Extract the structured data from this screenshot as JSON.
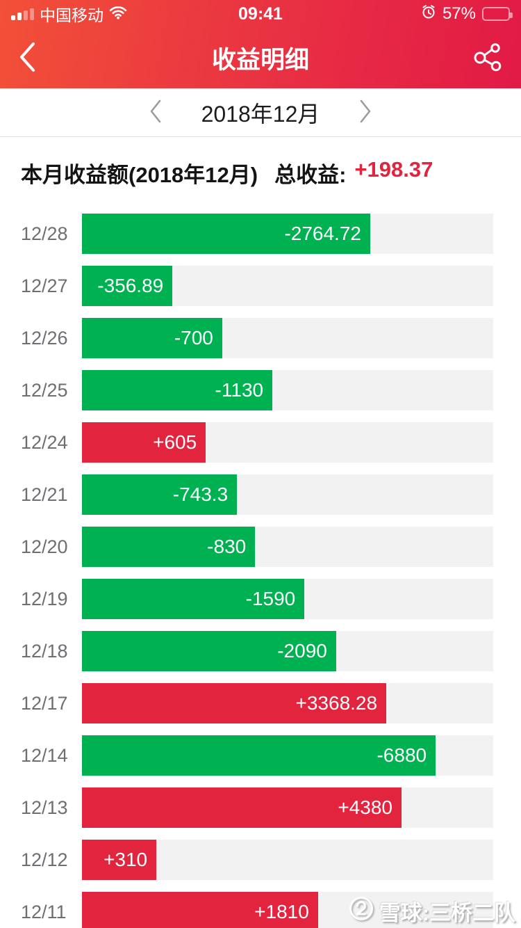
{
  "status_bar": {
    "carrier": "中国移动",
    "time": "09:41",
    "battery_text": "57%",
    "battery_level": 57,
    "icons": [
      "cellular-signal-icon",
      "wifi-icon",
      "alarm-clock-icon",
      "battery-icon"
    ]
  },
  "nav": {
    "title": "收益明细",
    "icons": [
      "back-chevron-icon",
      "share-icon"
    ]
  },
  "month_selector": {
    "label": "2018年12月",
    "icons": [
      "chevron-left-icon",
      "chevron-right-icon"
    ]
  },
  "summary": {
    "month_label": "本月收益额(2018年12月)",
    "total_label": "总收益:",
    "total_value": "+198.37"
  },
  "watermark": {
    "text": "雪球:三桥二队",
    "icon": "xueqiu-logo-icon"
  },
  "colors": {
    "gain_red": "#e2243f",
    "loss_green": "#00b151",
    "header_gradient_start": "#f25038",
    "header_gradient_end": "#e21a45",
    "bar_track": "#f2f2f3"
  },
  "chart_data": {
    "type": "bar",
    "orientation": "horizontal",
    "title": "本月收益额(2018年12月)",
    "value_labels_inside_bars": true,
    "legend": false,
    "color_semantics": {
      "positive": "red",
      "negative": "green"
    },
    "track_full_scale_hint": "bar lengths not linear; measured fractions stored as bar_pct",
    "rows": [
      {
        "date": "12/28",
        "value": -2764.72,
        "label": "-2764.72",
        "bar_pct": 70.1
      },
      {
        "date": "12/27",
        "value": -356.89,
        "label": "-356.89",
        "bar_pct": 22.0
      },
      {
        "date": "12/26",
        "value": -700,
        "label": "-700",
        "bar_pct": 34.1
      },
      {
        "date": "12/25",
        "value": -1130,
        "label": "-1130",
        "bar_pct": 46.3
      },
      {
        "date": "12/24",
        "value": 605,
        "label": "+605",
        "bar_pct": 30.1
      },
      {
        "date": "12/21",
        "value": -743.3,
        "label": "-743.3",
        "bar_pct": 37.7
      },
      {
        "date": "12/20",
        "value": -830,
        "label": "-830",
        "bar_pct": 42.1
      },
      {
        "date": "12/19",
        "value": -1590,
        "label": "-1590",
        "bar_pct": 54.1
      },
      {
        "date": "12/18",
        "value": -2090,
        "label": "-2090",
        "bar_pct": 61.8
      },
      {
        "date": "12/17",
        "value": 3368.28,
        "label": "+3368.28",
        "bar_pct": 74.0
      },
      {
        "date": "12/14",
        "value": -6880,
        "label": "-6880",
        "bar_pct": 86.0
      },
      {
        "date": "12/13",
        "value": 4380,
        "label": "+4380",
        "bar_pct": 77.7
      },
      {
        "date": "12/12",
        "value": 310,
        "label": "+310",
        "bar_pct": 18.1
      },
      {
        "date": "12/11",
        "value": 1810,
        "label": "+1810",
        "bar_pct": 57.4
      }
    ]
  }
}
